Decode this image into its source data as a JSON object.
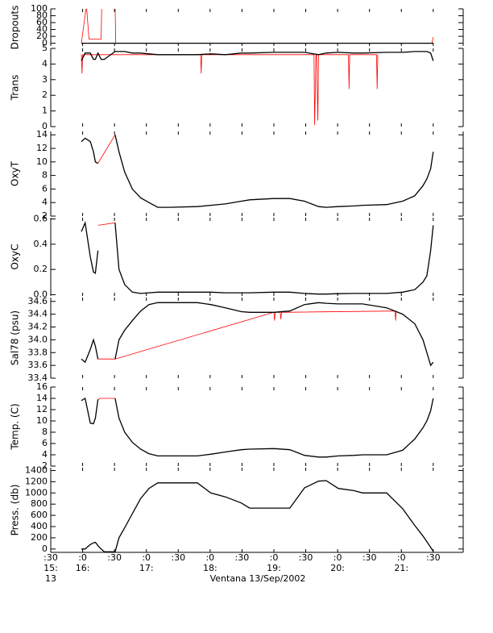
{
  "chart_data": [
    {
      "type": "line",
      "ylabel": "Dropouts",
      "xlim": [
        15.5,
        21.97
      ],
      "ylim": [
        -8,
        100
      ],
      "yticks": [
        0,
        20,
        40,
        60,
        80,
        100
      ],
      "x": [
        15.98,
        21.5
      ],
      "series": [
        {
          "color": "#ff0000",
          "x": [
            15.98,
            16.06,
            16.1,
            16.29,
            16.3,
            16.51,
            16.52,
            21.48,
            21.5
          ],
          "values": [
            0,
            110,
            12,
            12,
            110,
            110,
            0,
            0,
            18
          ]
        },
        {
          "color": "#000000",
          "values": [
            0,
            0
          ]
        }
      ]
    },
    {
      "type": "line",
      "ylabel": "Trans",
      "xlim": [
        15.5,
        21.97
      ],
      "ylim": [
        0,
        5
      ],
      "yticks": [
        0,
        1,
        2,
        3,
        4,
        5
      ],
      "x": [
        15.98,
        16.04,
        16.12,
        16.17,
        16.2,
        16.24,
        16.29,
        16.34,
        16.51,
        16.57,
        16.66,
        16.78,
        16.91,
        17.04,
        17.18,
        17.35,
        17.8,
        18.01,
        18.24,
        18.49,
        18.62,
        19.0,
        19.25,
        19.48,
        19.7,
        19.82,
        20.01,
        20.26,
        20.39,
        20.77,
        21.02,
        21.21,
        21.34,
        21.4,
        21.46,
        21.5
      ],
      "series": [
        {
          "color": "#ff0000",
          "x": [
            15.98,
            15.99,
            16.0,
            17.85,
            17.86,
            17.87,
            19.63,
            19.64,
            19.66,
            19.67,
            19.69,
            19.7,
            20.17,
            20.18,
            20.19,
            20.61,
            20.62,
            20.63
          ],
          "values": [
            4.6,
            3.4,
            4.6,
            4.6,
            3.4,
            4.6,
            4.6,
            0.1,
            4.6,
            4.6,
            0.4,
            4.6,
            4.6,
            2.4,
            4.6,
            4.6,
            2.4,
            4.6
          ]
        },
        {
          "color": "#000000",
          "values": [
            4.2,
            4.7,
            4.7,
            4.3,
            4.3,
            4.7,
            4.3,
            4.3,
            4.8,
            4.8,
            4.8,
            4.7,
            4.7,
            4.65,
            4.6,
            4.6,
            4.6,
            4.65,
            4.6,
            4.7,
            4.7,
            4.75,
            4.75,
            4.75,
            4.6,
            4.7,
            4.75,
            4.7,
            4.7,
            4.75,
            4.75,
            4.8,
            4.8,
            4.8,
            4.7,
            4.2
          ]
        }
      ]
    },
    {
      "type": "line",
      "ylabel": "OxyT",
      "xlim": [
        15.5,
        21.97
      ],
      "ylim": [
        2,
        14.5
      ],
      "yticks": [
        2,
        4,
        6,
        8,
        10,
        12,
        14
      ],
      "x": [
        15.98,
        16.04,
        16.12,
        16.17,
        16.2,
        16.24,
        16.29,
        16.34,
        16.51,
        16.57,
        16.66,
        16.78,
        16.91,
        17.04,
        17.18,
        17.35,
        17.8,
        18.01,
        18.24,
        18.49,
        18.62,
        19.0,
        19.25,
        19.48,
        19.7,
        19.82,
        20.01,
        20.26,
        20.39,
        20.77,
        21.02,
        21.21,
        21.34,
        21.4,
        21.46,
        21.5
      ],
      "series": [
        {
          "color": "#ff0000",
          "x": [
            16.24,
            16.51
          ],
          "values": [
            9.8,
            14
          ]
        },
        {
          "color": "#000000",
          "values": [
            13,
            13.5,
            13,
            11.5,
            10,
            9.8,
            null,
            null,
            14,
            11.5,
            8.5,
            6,
            4.7,
            4,
            3.3,
            3.3,
            3.4,
            3.6,
            3.8,
            4.2,
            4.4,
            4.6,
            4.6,
            4.2,
            3.4,
            3.3,
            3.4,
            3.5,
            3.6,
            3.7,
            4.2,
            5,
            6.5,
            7.5,
            9,
            11.5
          ]
        }
      ]
    },
    {
      "type": "line",
      "ylabel": "OxyC",
      "xlim": [
        15.5,
        21.97
      ],
      "ylim": [
        -0.01,
        0.61
      ],
      "yticks": [
        {
          "value": 0,
          "label": "0.0"
        },
        0.2,
        0.4,
        0.6
      ],
      "x": [
        15.98,
        16.04,
        16.12,
        16.17,
        16.2,
        16.24,
        16.29,
        16.34,
        16.51,
        16.57,
        16.66,
        16.78,
        16.91,
        17.04,
        17.18,
        17.35,
        17.8,
        18.01,
        18.24,
        18.49,
        18.62,
        19.0,
        19.25,
        19.48,
        19.7,
        19.82,
        20.01,
        20.26,
        20.39,
        20.77,
        21.02,
        21.21,
        21.34,
        21.4,
        21.46,
        21.5
      ],
      "series": [
        {
          "color": "#ff0000",
          "x": [
            16.24,
            16.51
          ],
          "values": [
            0.55,
            0.57
          ]
        },
        {
          "color": "#000000",
          "values": [
            0.5,
            0.57,
            0.3,
            0.18,
            0.17,
            0.35,
            null,
            null,
            0.57,
            0.2,
            0.08,
            0.02,
            0.01,
            0.015,
            0.02,
            0.02,
            0.02,
            0.02,
            0.015,
            0.015,
            0.015,
            0.02,
            0.02,
            0.01,
            0.005,
            0.005,
            0.008,
            0.01,
            0.01,
            0.01,
            0.02,
            0.04,
            0.1,
            0.15,
            0.35,
            0.55
          ]
        }
      ]
    },
    {
      "type": "line",
      "ylabel": "Sal78 (psu)",
      "xlim": [
        15.5,
        21.97
      ],
      "ylim": [
        33.4,
        34.66
      ],
      "yticks": [
        33.4,
        33.6,
        33.8,
        {
          "value": 34,
          "label": "34.0"
        },
        34.2,
        34.4,
        34.6
      ],
      "x": [
        15.98,
        16.04,
        16.12,
        16.17,
        16.2,
        16.24,
        16.29,
        16.34,
        16.51,
        16.57,
        16.66,
        16.78,
        16.91,
        17.04,
        17.18,
        17.35,
        17.8,
        18.01,
        18.24,
        18.49,
        18.62,
        19.0,
        19.25,
        19.48,
        19.7,
        19.82,
        20.01,
        20.26,
        20.39,
        20.77,
        21.02,
        21.21,
        21.34,
        21.4,
        21.46,
        21.5
      ],
      "series": [
        {
          "color": "#ff0000",
          "x": [
            16.24,
            16.51,
            19.0,
            19.01,
            19.02,
            19.1,
            19.11,
            19.12,
            20.9,
            20.91,
            20.92
          ],
          "values": [
            33.7,
            33.7,
            34.43,
            34.3,
            34.43,
            34.43,
            34.32,
            34.43,
            34.45,
            34.3,
            34.45
          ]
        },
        {
          "color": "#000000",
          "values": [
            33.7,
            33.65,
            33.85,
            34.0,
            33.9,
            33.7,
            null,
            null,
            33.7,
            34.0,
            34.15,
            34.3,
            34.45,
            34.55,
            34.58,
            34.58,
            34.58,
            34.55,
            34.5,
            34.44,
            34.43,
            34.43,
            34.45,
            34.55,
            34.58,
            34.57,
            34.56,
            34.56,
            34.56,
            34.5,
            34.4,
            34.25,
            34.0,
            33.8,
            33.6,
            33.65
          ]
        }
      ]
    },
    {
      "type": "line",
      "ylabel": "Temp. (C)",
      "xlim": [
        15.5,
        21.97
      ],
      "ylim": [
        2,
        16
      ],
      "yticks": [
        2,
        4,
        6,
        8,
        10,
        12,
        14,
        16
      ],
      "x": [
        15.98,
        16.04,
        16.12,
        16.17,
        16.2,
        16.24,
        16.29,
        16.34,
        16.51,
        16.57,
        16.66,
        16.78,
        16.91,
        17.04,
        17.18,
        17.35,
        17.8,
        18.01,
        18.24,
        18.49,
        18.62,
        19.0,
        19.25,
        19.48,
        19.7,
        19.82,
        20.01,
        20.26,
        20.39,
        20.77,
        21.02,
        21.21,
        21.34,
        21.4,
        21.46,
        21.5
      ],
      "series": [
        {
          "color": "#ff0000",
          "x": [
            16.24,
            16.29,
            16.51
          ],
          "values": [
            13.8,
            14,
            14
          ]
        },
        {
          "color": "#000000",
          "values": [
            13.6,
            14,
            9.6,
            9.5,
            10.5,
            13.8,
            null,
            null,
            14,
            10.5,
            8,
            6.2,
            5,
            4.2,
            3.8,
            3.8,
            3.8,
            4.1,
            4.5,
            4.9,
            5,
            5.1,
            4.9,
            3.9,
            3.6,
            3.6,
            3.8,
            3.9,
            4,
            4,
            4.8,
            6.8,
            8.8,
            10,
            11.8,
            14
          ]
        }
      ]
    },
    {
      "type": "line",
      "ylabel": "Press. (db)",
      "xlim": [
        15.5,
        21.97
      ],
      "ylim": [
        -60,
        1450
      ],
      "yticks": [
        0,
        200,
        400,
        600,
        800,
        1000,
        1200,
        1400
      ],
      "x": [
        15.98,
        16.04,
        16.12,
        16.17,
        16.2,
        16.24,
        16.29,
        16.34,
        16.51,
        16.57,
        16.66,
        16.78,
        16.91,
        17.04,
        17.18,
        17.35,
        17.8,
        18.01,
        18.24,
        18.49,
        18.62,
        19.0,
        19.25,
        19.48,
        19.7,
        19.82,
        20.01,
        20.26,
        20.39,
        20.77,
        21.02,
        21.21,
        21.34,
        21.4,
        21.46,
        21.5
      ],
      "series": [
        {
          "color": "#000000",
          "values": [
            0,
            0,
            80,
            110,
            120,
            60,
            0,
            -50,
            -50,
            200,
            380,
            630,
            900,
            1080,
            1180,
            1180,
            1180,
            1000,
            930,
            820,
            730,
            730,
            730,
            1090,
            1210,
            1220,
            1080,
            1040,
            1000,
            1000,
            720,
            420,
            230,
            130,
            30,
            -40
          ]
        }
      ],
      "xticks": [
        {
          "value": 15.5,
          "label": ":30"
        },
        {
          "value": 16,
          "label": ":0"
        },
        {
          "value": 16.5,
          "label": ":30"
        },
        {
          "value": 17,
          "label": ":0"
        },
        {
          "value": 17.5,
          "label": ":30"
        },
        {
          "value": 18,
          "label": ":0"
        },
        {
          "value": 18.5,
          "label": ":30"
        },
        {
          "value": 19,
          "label": ":0"
        },
        {
          "value": 19.5,
          "label": ":30"
        },
        {
          "value": 20,
          "label": ":0"
        },
        {
          "value": 20.5,
          "label": ":30"
        },
        {
          "value": 21,
          "label": ":0"
        },
        {
          "value": 21.5,
          "label": ":30"
        }
      ],
      "xtick_hours": [
        {
          "value": 15.5,
          "label": "15:"
        },
        {
          "value": 16,
          "label": "16:"
        },
        {
          "value": 17,
          "label": "17:"
        },
        {
          "value": 18,
          "label": "18:"
        },
        {
          "value": 19,
          "label": "19:"
        },
        {
          "value": 20,
          "label": "20:"
        },
        {
          "value": 21,
          "label": "21:"
        }
      ],
      "xtick_day": {
        "value": 15.5,
        "label": "13"
      },
      "xlabel": "Ventana 13/Sep/2002"
    }
  ]
}
